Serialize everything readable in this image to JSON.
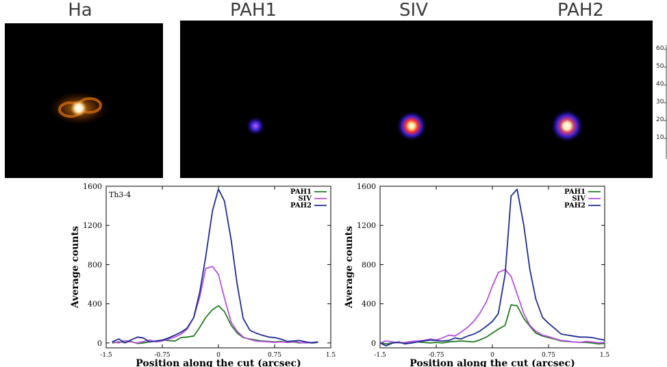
{
  "images": [
    {
      "title": "Ha"
    },
    {
      "title": "PAH1"
    },
    {
      "title": "SIV"
    },
    {
      "title": "PAH2"
    }
  ],
  "colorbar": {
    "ticks": [
      "60",
      "50",
      "40",
      "30",
      "20",
      "10"
    ]
  },
  "chart_data": [
    {
      "type": "line",
      "annotation": "Th3-4",
      "xlabel": "Position along the cut (arcsec)",
      "ylabel": "Average counts",
      "xlim": [
        -1.5,
        1.5
      ],
      "ylim": [
        -50,
        1600
      ],
      "xticks": [
        -1.5,
        -0.75,
        0,
        0.75,
        1.5
      ],
      "xtick_labels": [
        "-1.5",
        "-0.75",
        "0",
        "0.75",
        "1.5"
      ],
      "yticks": [
        0,
        400,
        800,
        1200,
        1600
      ],
      "legend_position": "top-right",
      "x": [
        -1.42,
        -1.33,
        -1.25,
        -1.17,
        -1.08,
        -1.0,
        -0.92,
        -0.83,
        -0.75,
        -0.67,
        -0.58,
        -0.5,
        -0.42,
        -0.33,
        -0.25,
        -0.17,
        -0.08,
        0.0,
        0.08,
        0.17,
        0.25,
        0.33,
        0.42,
        0.5,
        0.58,
        0.67,
        0.75,
        0.83,
        0.92,
        1.0,
        1.08,
        1.17,
        1.25,
        1.33
      ],
      "series": [
        {
          "name": "PAH1",
          "color": "#1f7a1f",
          "values": [
            0,
            10,
            5,
            15,
            -5,
            0,
            10,
            20,
            30,
            25,
            20,
            55,
            60,
            70,
            160,
            260,
            340,
            380,
            320,
            180,
            100,
            55,
            40,
            30,
            20,
            15,
            10,
            15,
            5,
            10,
            0,
            5,
            0,
            5
          ]
        },
        {
          "name": "SIV",
          "color": "#b84ee0",
          "values": [
            10,
            0,
            25,
            10,
            0,
            15,
            30,
            10,
            20,
            40,
            60,
            90,
            140,
            260,
            470,
            760,
            780,
            700,
            460,
            210,
            120,
            60,
            35,
            20,
            15,
            10,
            5,
            10,
            5,
            15,
            5,
            0,
            5,
            10
          ]
        },
        {
          "name": "PAH2",
          "color": "#1c2b8f",
          "values": [
            10,
            40,
            0,
            30,
            60,
            50,
            10,
            20,
            30,
            50,
            80,
            110,
            150,
            260,
            520,
            880,
            1350,
            1570,
            1450,
            1050,
            600,
            250,
            130,
            100,
            80,
            60,
            55,
            40,
            15,
            20,
            25,
            10,
            0,
            10
          ]
        }
      ]
    },
    {
      "type": "line",
      "xlabel": "Position along the cut (arcsec)",
      "ylabel": "Average counts",
      "xlim": [
        -1.5,
        1.5
      ],
      "ylim": [
        -50,
        1600
      ],
      "xticks": [
        -1.5,
        -0.75,
        0,
        0.75,
        1.5
      ],
      "xtick_labels": [
        "-1.5",
        "-0.75",
        "0",
        "0.75",
        "1.5"
      ],
      "yticks": [
        0,
        400,
        800,
        1200,
        1600
      ],
      "legend_position": "top-right",
      "x": [
        -1.5,
        -1.42,
        -1.33,
        -1.25,
        -1.17,
        -1.08,
        -1.0,
        -0.92,
        -0.83,
        -0.75,
        -0.67,
        -0.58,
        -0.5,
        -0.42,
        -0.33,
        -0.25,
        -0.17,
        -0.08,
        0.0,
        0.08,
        0.17,
        0.25,
        0.33,
        0.42,
        0.5,
        0.58,
        0.67,
        0.75,
        0.83,
        0.92,
        1.0,
        1.08,
        1.17,
        1.25,
        1.33,
        1.42,
        1.5
      ],
      "series": [
        {
          "name": "PAH1",
          "color": "#1f7a1f",
          "values": [
            0,
            -10,
            0,
            5,
            -5,
            0,
            10,
            5,
            0,
            5,
            0,
            10,
            15,
            20,
            15,
            10,
            30,
            60,
            100,
            140,
            180,
            390,
            380,
            250,
            170,
            100,
            70,
            55,
            40,
            20,
            15,
            10,
            5,
            5,
            0,
            -10,
            -5
          ]
        },
        {
          "name": "SIV",
          "color": "#b84ee0",
          "values": [
            0,
            20,
            10,
            0,
            5,
            15,
            20,
            25,
            40,
            30,
            50,
            80,
            70,
            110,
            160,
            220,
            300,
            420,
            580,
            720,
            750,
            680,
            500,
            300,
            180,
            120,
            80,
            65,
            45,
            25,
            20,
            10,
            5,
            15,
            10,
            0,
            5
          ]
        },
        {
          "name": "PAH2",
          "color": "#1c2b8f",
          "values": [
            0,
            -30,
            0,
            10,
            -10,
            0,
            10,
            20,
            30,
            25,
            20,
            25,
            50,
            40,
            70,
            90,
            120,
            170,
            220,
            300,
            700,
            1500,
            1570,
            1200,
            750,
            450,
            260,
            200,
            150,
            90,
            80,
            70,
            60,
            60,
            55,
            40,
            30
          ]
        }
      ]
    }
  ]
}
